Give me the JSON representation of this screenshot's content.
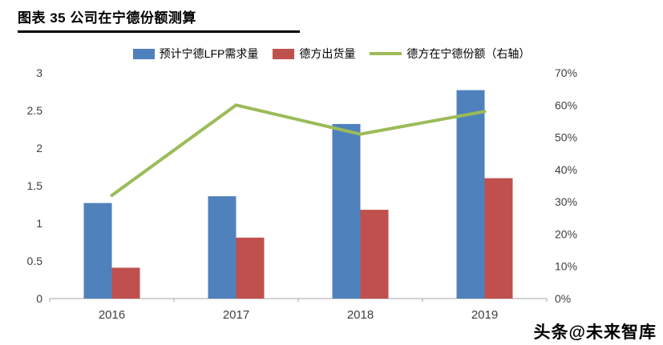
{
  "header": {
    "title": "图表 35 公司在宁德份额测算"
  },
  "watermark": {
    "text": "头条@未来智库"
  },
  "chart_data": {
    "type": "bar",
    "subtype": "bar+line combo, dual axis",
    "title": "公司在宁德份额测算",
    "categories": [
      "2016",
      "2017",
      "2018",
      "2019"
    ],
    "series": [
      {
        "name": "预计宁德LFP需求量",
        "type": "bar",
        "axis": "left",
        "color": "#4F81BD",
        "values": [
          1.27,
          1.36,
          2.32,
          2.77
        ]
      },
      {
        "name": "德方出货量",
        "type": "bar",
        "axis": "left",
        "color": "#C0504D",
        "values": [
          0.41,
          0.81,
          1.18,
          1.6
        ]
      },
      {
        "name": "德方在宁德份额（右轴）",
        "type": "line",
        "axis": "right",
        "color": "#9BBB59",
        "values": [
          32,
          60,
          51,
          58
        ]
      }
    ],
    "left_axis": {
      "min": 0,
      "max": 3,
      "step": 0.5,
      "labels": [
        "0",
        "0.5",
        "1",
        "1.5",
        "2",
        "2.5",
        "3"
      ]
    },
    "right_axis": {
      "min": 0,
      "max": 70,
      "step": 10,
      "labels": [
        "0%",
        "10%",
        "20%",
        "30%",
        "40%",
        "50%",
        "60%",
        "70%"
      ]
    },
    "grid": false,
    "legend_position": "top",
    "axis_line_color": "#A6A6A6",
    "tick_label_color": "#404040"
  }
}
